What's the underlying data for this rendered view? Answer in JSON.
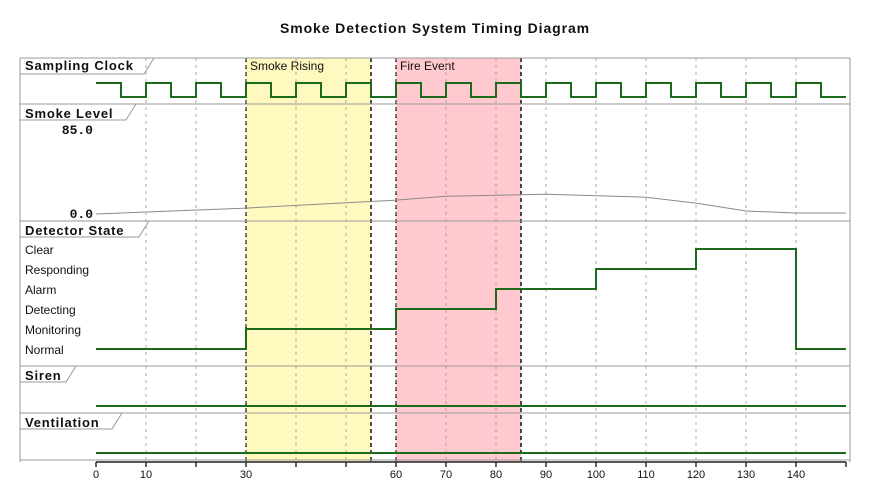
{
  "title": "Smoke Detection System Timing Diagram",
  "colors": {
    "signal": "#1b6b1b",
    "analog": "#8a8a8a",
    "smoke_rising_fill": "#fff8bf",
    "fire_event_fill": "#ffc9cf",
    "frame": "#9a9a9a",
    "grid": "#9a9a9a"
  },
  "highlights": [
    {
      "label": "Smoke Rising",
      "start": 30,
      "end": 55,
      "color": "#fff8bf"
    },
    {
      "label": "Fire Event",
      "start": 60,
      "end": 85,
      "color": "#ffc9cf"
    }
  ],
  "lanes": {
    "clock": {
      "label": "Sampling Clock",
      "period": 10,
      "high_first": true
    },
    "smoke": {
      "label": "Smoke Level",
      "max_label": "85.0",
      "min_label": "0.0",
      "min": 0,
      "max": 85,
      "points": [
        [
          0,
          0
        ],
        [
          30,
          6
        ],
        [
          60,
          14
        ],
        [
          70,
          18
        ],
        [
          90,
          20
        ],
        [
          110,
          17
        ],
        [
          120,
          11
        ],
        [
          130,
          3
        ],
        [
          140,
          1
        ],
        [
          150,
          1
        ]
      ]
    },
    "detector": {
      "label": "Detector State",
      "states": [
        "Clear",
        "Responding",
        "Alarm",
        "Detecting",
        "Monitoring",
        "Normal"
      ],
      "steps": [
        {
          "t": 0,
          "state": "Normal"
        },
        {
          "t": 30,
          "state": "Monitoring"
        },
        {
          "t": 60,
          "state": "Detecting"
        },
        {
          "t": 80,
          "state": "Alarm"
        },
        {
          "t": 100,
          "state": "Responding"
        },
        {
          "t": 120,
          "state": "Clear"
        },
        {
          "t": 140,
          "state": "Normal"
        }
      ]
    },
    "siren": {
      "label": "Siren"
    },
    "ventilation": {
      "label": "Ventilation"
    }
  },
  "axis": {
    "min": 0,
    "max": 150,
    "ticks": [
      0,
      10,
      30,
      60,
      70,
      80,
      90,
      100,
      110,
      120,
      130,
      140
    ],
    "minor_ticks": [
      0,
      10,
      20,
      30,
      40,
      50,
      60,
      70,
      80,
      90,
      100,
      110,
      120,
      130,
      140,
      150
    ]
  }
}
